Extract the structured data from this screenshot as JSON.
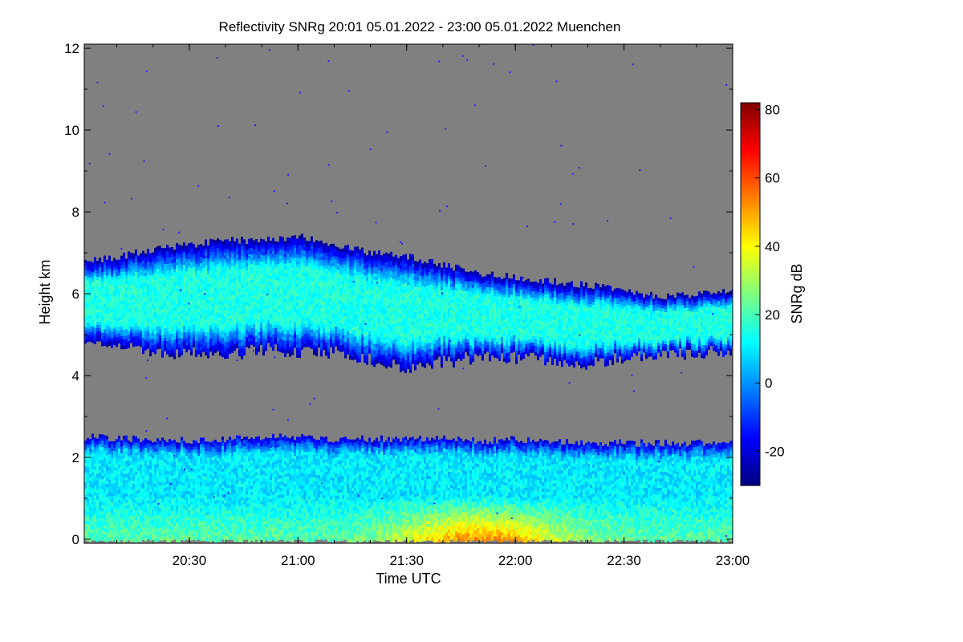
{
  "chart_data": {
    "type": "heatmap",
    "title": "Reflectivity SNRg   20:01 05.01.2022 - 23:00 05.01.2022 Muenchen",
    "xlabel": "Time UTC",
    "ylabel": "Height km",
    "colorbar_label": "SNRg dB",
    "x_ticks": [
      "20:30",
      "21:00",
      "21:30",
      "22:00",
      "22:30",
      "23:00"
    ],
    "x_tick_minutes": [
      30,
      60,
      90,
      120,
      150,
      180
    ],
    "xlim_minutes": [
      1,
      180
    ],
    "y_ticks": [
      "0",
      "2",
      "4",
      "6",
      "8",
      "10",
      "12"
    ],
    "y_tick_values": [
      0,
      2,
      4,
      6,
      8,
      10,
      12
    ],
    "ylim": [
      -0.1,
      12.1
    ],
    "colorbar_ticks": [
      "-20",
      "0",
      "20",
      "40",
      "60",
      "80"
    ],
    "colorbar_tick_values": [
      -20,
      0,
      20,
      40,
      60,
      80
    ],
    "colorbar_range": [
      -30,
      82
    ],
    "background_color": "#808080",
    "colormap": [
      "#00007f",
      "#0000ff",
      "#007fff",
      "#00ffff",
      "#7fff7f",
      "#ffff00",
      "#ff7f00",
      "#ff0000",
      "#7f0000"
    ],
    "layers": [
      {
        "name": "upper",
        "x_minutes": [
          1,
          10,
          20,
          30,
          40,
          50,
          60,
          70,
          80,
          90,
          100,
          110,
          120,
          130,
          140,
          150,
          160,
          170,
          180
        ],
        "top_km": [
          6.8,
          6.9,
          7.1,
          7.2,
          7.3,
          7.3,
          7.4,
          7.2,
          7.0,
          6.9,
          6.7,
          6.5,
          6.4,
          6.3,
          6.2,
          6.1,
          5.9,
          6.0,
          6.1
        ],
        "base_km": [
          4.9,
          4.8,
          4.6,
          4.6,
          4.5,
          4.7,
          4.6,
          4.6,
          4.4,
          4.2,
          4.4,
          4.5,
          4.5,
          4.4,
          4.3,
          4.5,
          4.5,
          4.6,
          4.6
        ],
        "peak_snr_db": 15
      },
      {
        "name": "lower",
        "x_minutes": [
          1,
          10,
          20,
          30,
          40,
          50,
          60,
          70,
          80,
          90,
          100,
          110,
          120,
          130,
          140,
          150,
          160,
          170,
          180
        ],
        "top_km": [
          2.5,
          2.45,
          2.45,
          2.4,
          2.45,
          2.5,
          2.5,
          2.45,
          2.45,
          2.45,
          2.45,
          2.4,
          2.45,
          2.4,
          2.35,
          2.35,
          2.35,
          2.35,
          2.4
        ],
        "base_km": [
          0,
          0,
          0,
          0,
          0,
          0,
          0,
          0,
          0,
          0,
          0,
          0,
          0,
          0,
          0,
          0,
          0,
          0,
          0
        ],
        "peak_snr_db": 55,
        "peak_minute": 110
      }
    ]
  }
}
